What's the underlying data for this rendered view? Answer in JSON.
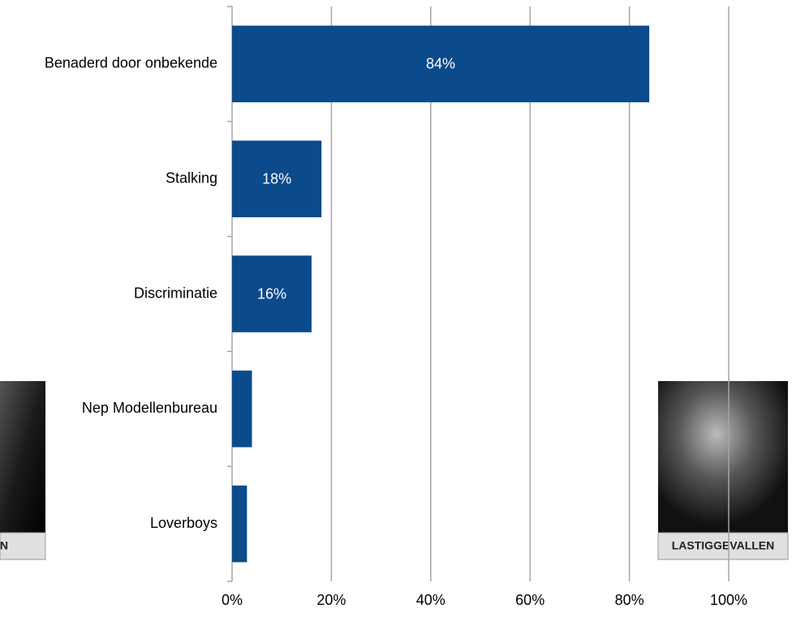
{
  "chart_data": {
    "type": "hbar",
    "categories": [
      "Benaderd door onbekende",
      "Stalking",
      "Discriminatie",
      "Nep Modellenbureau",
      "Loverboys"
    ],
    "values": [
      84,
      18,
      16,
      4,
      3
    ],
    "value_labels": [
      "84%",
      "18%",
      "16%",
      null,
      null
    ],
    "color": "#0b4a8b",
    "xlim": [
      0,
      100
    ],
    "xticks": [
      {
        "value": 0,
        "label": "0%"
      },
      {
        "value": 20,
        "label": "20%"
      },
      {
        "value": 40,
        "label": "40%"
      },
      {
        "value": 60,
        "label": "60%"
      },
      {
        "value": 80,
        "label": "80%"
      },
      {
        "value": 100,
        "label": "100%"
      }
    ],
    "grid": true
  },
  "photos": [
    {
      "caption": "N"
    },
    {
      "caption": "LASTIGGEVALLEN"
    }
  ]
}
